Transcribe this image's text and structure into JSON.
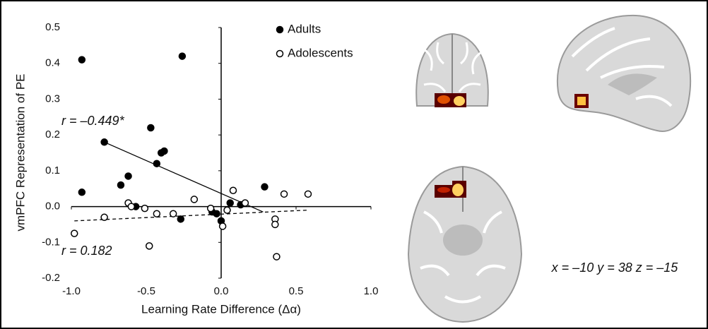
{
  "chart_data": {
    "type": "scatter",
    "xlabel": "Learning Rate Difference (Δα)",
    "ylabel": "vmPFC Representation of PE",
    "xlim": [
      -1.0,
      1.0
    ],
    "ylim": [
      -0.2,
      0.5
    ],
    "xticks": [
      {
        "value": -1,
        "label": "-1.0"
      },
      -0.5,
      {
        "value": 0,
        "label": "0.0"
      },
      0.5,
      {
        "value": 1,
        "label": "1.0"
      }
    ],
    "yticks": [
      -0.2,
      -0.1,
      {
        "value": 0,
        "label": "0.0"
      },
      0.1,
      0.2,
      0.3,
      0.4,
      0.5
    ],
    "series": [
      {
        "name": "Adults",
        "color": "#000000",
        "filled": true,
        "x": [
          -0.93,
          -0.26,
          -0.78,
          -0.47,
          -0.4,
          -0.38,
          -0.43,
          -0.62,
          -0.67,
          -0.93,
          -0.57,
          -0.27,
          -0.06,
          -0.03,
          0.0,
          0.06,
          0.13,
          0.29
        ],
        "values": [
          0.41,
          0.42,
          0.18,
          0.22,
          0.15,
          0.155,
          0.12,
          0.085,
          0.06,
          0.04,
          0.0,
          -0.035,
          -0.015,
          -0.02,
          -0.04,
          0.01,
          0.005,
          0.055
        ]
      },
      {
        "name": "Adolescents",
        "color": "#000000",
        "filled": false,
        "x": [
          -0.62,
          -0.6,
          -0.51,
          -0.78,
          -0.98,
          -0.43,
          -0.32,
          -0.18,
          -0.07,
          -0.48,
          0.01,
          0.04,
          0.08,
          0.16,
          0.36,
          0.36,
          0.37,
          0.42,
          0.58
        ],
        "values": [
          0.01,
          0.0,
          -0.005,
          -0.03,
          -0.075,
          -0.02,
          -0.02,
          0.02,
          -0.005,
          -0.11,
          -0.055,
          -0.01,
          0.045,
          0.01,
          -0.035,
          -0.05,
          -0.14,
          0.035,
          0.035
        ]
      }
    ],
    "trend_lines": [
      {
        "x": [
          -0.78,
          0.28
        ],
        "y": [
          0.18,
          -0.015
        ],
        "dashed": false
      },
      {
        "x": [
          -0.98,
          0.58
        ],
        "y": [
          -0.04,
          -0.01
        ],
        "dashed": true
      }
    ],
    "annotations": [
      "r = –0.449*",
      "r = 0.182"
    ],
    "coordinates_label": "x = –10 y = 38 z = –15"
  }
}
